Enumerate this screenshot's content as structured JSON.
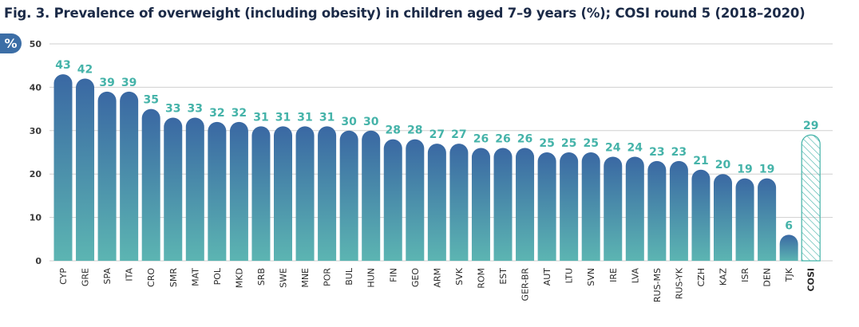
{
  "title": "Fig. 3. Prevalence of overweight (including obesity) in children aged 7–9 years (%); COSI round 5 (2018–2020)",
  "unit_badge": "%",
  "colors": {
    "bar_top": "#3a68a3",
    "bar_bottom": "#5cb5b2",
    "label": "#45b3a9",
    "hatch": "#45b3a9",
    "grid": "#cfcfcf"
  },
  "chart_data": {
    "type": "bar",
    "title": "Fig. 3. Prevalence of overweight (including obesity) in children aged 7–9 years (%); COSI round 5 (2018–2020)",
    "ylabel": "%",
    "ylim": [
      0,
      50
    ],
    "yticks": [
      0,
      10,
      20,
      30,
      40,
      50
    ],
    "grid": true,
    "categories": [
      "CYP",
      "GRE",
      "SPA",
      "ITA",
      "CRO",
      "SMR",
      "MAT",
      "POL",
      "MKD",
      "SRB",
      "SWE",
      "MNE",
      "POR",
      "BUL",
      "HUN",
      "FIN",
      "GEO",
      "ARM",
      "SVK",
      "ROM",
      "EST",
      "GER-BR",
      "AUT",
      "LTU",
      "SVN",
      "IRE",
      "LVA",
      "RUS-MS",
      "RUS-YK",
      "CZH",
      "KAZ",
      "ISR",
      "DEN",
      "TJK",
      "COSI"
    ],
    "values": [
      43,
      42,
      39,
      39,
      35,
      33,
      33,
      32,
      32,
      31,
      31,
      31,
      31,
      30,
      30,
      28,
      28,
      27,
      27,
      26,
      26,
      26,
      25,
      25,
      25,
      24,
      24,
      23,
      23,
      21,
      20,
      19,
      19,
      6,
      29
    ],
    "highlight": {
      "category": "COSI",
      "style": "hatched outline"
    }
  }
}
